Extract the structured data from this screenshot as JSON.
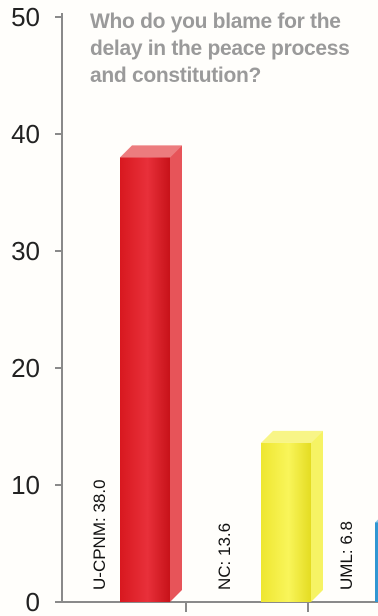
{
  "chart_data": {
    "type": "bar",
    "title": "Who do you blame for the delay in the peace process and constitution?",
    "categories": [
      "U-CPNM",
      "NC",
      "UML"
    ],
    "values": [
      38.0,
      13.6,
      6.8
    ],
    "data_labels": [
      "U-CPNM: 38.0",
      "NC: 13.6",
      "UML: 6.8"
    ],
    "bar_colors": [
      "#e0242b",
      "#f3ef3a",
      "#3fa7e0"
    ],
    "ylim": [
      0,
      50
    ],
    "yticks": [
      "0",
      "10",
      "20",
      "30",
      "40",
      "50"
    ],
    "xlabel": "",
    "ylabel": "",
    "grid": false,
    "legend": "none"
  }
}
